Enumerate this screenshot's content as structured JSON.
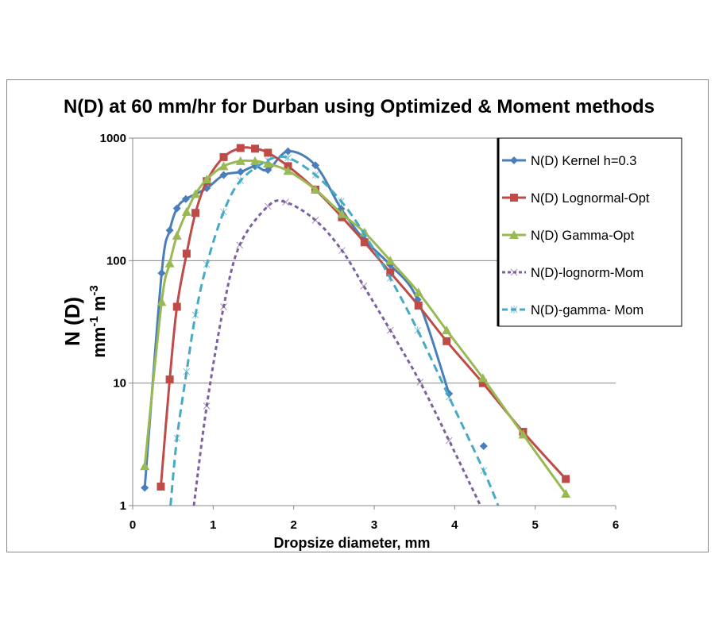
{
  "chart_data": {
    "type": "line",
    "title": "N(D) at 60 mm/hr for Durban using Optimized & Moment methods",
    "xlabel": "Dropsize diameter, mm",
    "ylabel": "N (D)",
    "ylabel_units": "mm-1 m-3",
    "ylabel_units_parts": {
      "base1": "mm",
      "exp1": "-1",
      "base2": "m",
      "exp2": "-3"
    },
    "xlim": [
      0,
      6
    ],
    "ylim": [
      1,
      1000
    ],
    "yscale": "log",
    "xticks": [
      "0",
      "1",
      "2",
      "3",
      "4",
      "5",
      "6"
    ],
    "yticks": [
      "1",
      "10",
      "100",
      "1000"
    ],
    "grid": "horizontal major",
    "legend_position": "right",
    "series": [
      {
        "name": "N(D) Kernel h=0.3",
        "color": "#4a7ebb",
        "marker": "diamond",
        "dash": "solid",
        "x": [
          0.15,
          0.36,
          0.46,
          0.55,
          0.66,
          0.92,
          1.13,
          1.34,
          1.52,
          1.68,
          1.93,
          2.27,
          2.59,
          2.87,
          3.2,
          3.54,
          3.93,
          null,
          4.36
        ],
        "y": [
          1.4,
          79,
          177,
          267,
          318,
          390,
          500,
          530,
          590,
          550,
          780,
          600,
          265,
          150,
          92,
          48,
          8.2,
          null,
          3.06
        ]
      },
      {
        "name": "N(D) Lognormal-Opt",
        "color": "#be4b48",
        "marker": "square",
        "dash": "solid",
        "x": [
          0.35,
          0.46,
          0.55,
          0.67,
          0.78,
          0.92,
          1.13,
          1.34,
          1.52,
          1.68,
          1.93,
          2.27,
          2.6,
          2.88,
          3.2,
          3.55,
          3.9,
          4.35,
          4.85,
          5.38
        ],
        "y": [
          1.43,
          10.7,
          42,
          114,
          245,
          445,
          700,
          830,
          820,
          760,
          590,
          380,
          226,
          141,
          80,
          43,
          22,
          10,
          4,
          1.65
        ]
      },
      {
        "name": "N(D) Gamma-Opt",
        "color": "#98b954",
        "marker": "triangle",
        "dash": "solid",
        "x": [
          0.15,
          0.36,
          0.46,
          0.55,
          0.67,
          0.78,
          0.92,
          1.13,
          1.34,
          1.52,
          1.68,
          1.93,
          2.27,
          2.6,
          2.88,
          3.2,
          3.55,
          3.9,
          4.35,
          4.85,
          5.38
        ],
        "y": [
          2.1,
          46,
          95,
          160,
          250,
          350,
          460,
          590,
          650,
          650,
          620,
          540,
          380,
          240,
          170,
          100,
          55,
          27,
          11,
          3.8,
          1.25
        ]
      },
      {
        "name": "N(D)-lognorm-Mom",
        "color": "#7d60a0",
        "marker": "x",
        "dash": "short",
        "x": [
          0.76,
          0.92,
          1.13,
          1.33,
          1.68,
          1.9,
          2.27,
          2.6,
          2.87,
          3.2,
          3.57,
          3.93,
          4.32
        ],
        "y": [
          1,
          6.5,
          42,
          134,
          278,
          300,
          214,
          121,
          62,
          27,
          10.2,
          3.4,
          1
        ]
      },
      {
        "name": "N(D)-gamma- Mom",
        "color": "#46aac5",
        "marker": "star",
        "dash": "long",
        "x": [
          0.47,
          0.55,
          0.67,
          0.78,
          0.92,
          1.13,
          1.34,
          1.68,
          1.93,
          2.27,
          2.59,
          2.87,
          3.2,
          3.54,
          3.93,
          4.36,
          4.54
        ],
        "y": [
          1,
          3.55,
          12.4,
          36,
          93,
          250,
          450,
          660,
          690,
          500,
          305,
          168,
          72,
          27,
          7.7,
          1.93,
          1
        ]
      }
    ]
  }
}
